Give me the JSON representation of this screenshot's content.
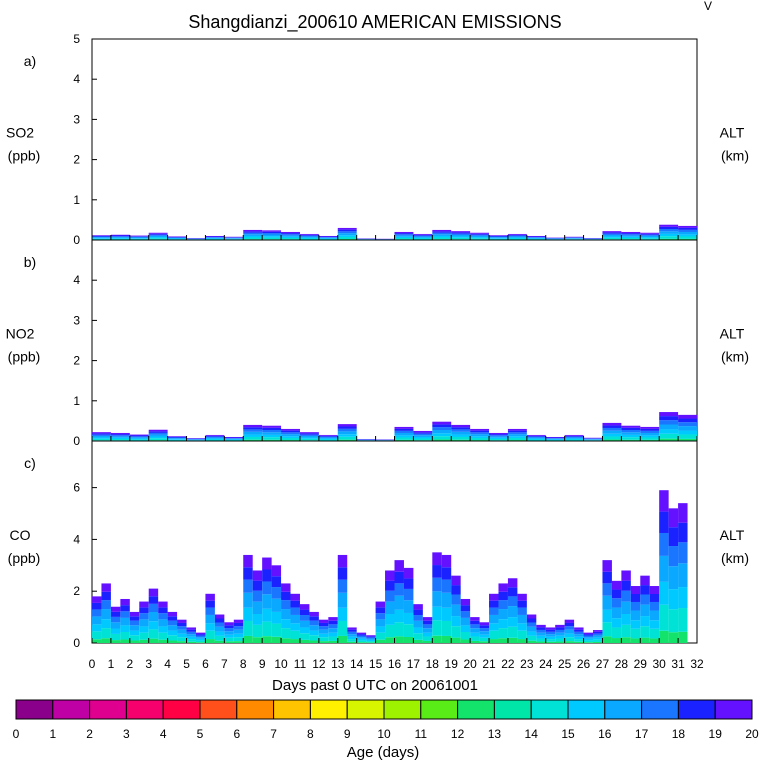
{
  "chart_data": {
    "type": "area",
    "title": "Shangdianzi_200610 AMERICAN EMISSIONS",
    "corner_mark": "V",
    "xlabel": "Days past 0 UTC on 20061001",
    "x_ticks": [
      "0",
      "1",
      "2",
      "3",
      "4",
      "5",
      "6",
      "7",
      "8",
      "9",
      "10",
      "11",
      "12",
      "13",
      "14",
      "15",
      "16",
      "17",
      "18",
      "19",
      "20",
      "21",
      "22",
      "23",
      "24",
      "25",
      "26",
      "27",
      "28",
      "29",
      "30",
      "31",
      "32"
    ],
    "xlim": [
      0,
      32
    ],
    "panels": [
      {
        "letter": "a)",
        "ylabel": "SO2",
        "yunit": "(ppb)",
        "rlabel": "ALT",
        "runit": "(km)",
        "ylim": [
          0,
          5
        ],
        "yticks": [
          "0",
          "1",
          "2",
          "3",
          "4",
          "5"
        ],
        "series": [
          {
            "day": 0.0,
            "total": 0.12
          },
          {
            "day": 1.0,
            "total": 0.13
          },
          {
            "day": 2.0,
            "total": 0.11
          },
          {
            "day": 3.0,
            "total": 0.18
          },
          {
            "day": 4.0,
            "total": 0.09
          },
          {
            "day": 5.0,
            "total": 0.05
          },
          {
            "day": 6.0,
            "total": 0.1
          },
          {
            "day": 7.0,
            "total": 0.08
          },
          {
            "day": 8.0,
            "total": 0.25
          },
          {
            "day": 9.0,
            "total": 0.24
          },
          {
            "day": 10.0,
            "total": 0.2
          },
          {
            "day": 11.0,
            "total": 0.15
          },
          {
            "day": 12.0,
            "total": 0.1
          },
          {
            "day": 13.0,
            "total": 0.3
          },
          {
            "day": 14.0,
            "total": 0.04
          },
          {
            "day": 15.0,
            "total": 0.03
          },
          {
            "day": 16.0,
            "total": 0.2
          },
          {
            "day": 17.0,
            "total": 0.15
          },
          {
            "day": 18.0,
            "total": 0.25
          },
          {
            "day": 19.0,
            "total": 0.22
          },
          {
            "day": 20.0,
            "total": 0.18
          },
          {
            "day": 21.0,
            "total": 0.12
          },
          {
            "day": 22.0,
            "total": 0.15
          },
          {
            "day": 23.0,
            "total": 0.1
          },
          {
            "day": 24.0,
            "total": 0.06
          },
          {
            "day": 25.0,
            "total": 0.08
          },
          {
            "day": 26.0,
            "total": 0.05
          },
          {
            "day": 27.0,
            "total": 0.22
          },
          {
            "day": 28.0,
            "total": 0.2
          },
          {
            "day": 29.0,
            "total": 0.18
          },
          {
            "day": 30.0,
            "total": 0.38
          },
          {
            "day": 31.0,
            "total": 0.35
          }
        ]
      },
      {
        "letter": "b)",
        "ylabel": "NO2",
        "yunit": "(ppb)",
        "rlabel": "ALT",
        "runit": "(km)",
        "ylim": [
          0,
          5
        ],
        "yticks": [
          "0",
          "1",
          "2",
          "3",
          "4"
        ],
        "series": [
          {
            "day": 0.0,
            "total": 0.22
          },
          {
            "day": 1.0,
            "total": 0.2
          },
          {
            "day": 2.0,
            "total": 0.16
          },
          {
            "day": 3.0,
            "total": 0.28
          },
          {
            "day": 4.0,
            "total": 0.12
          },
          {
            "day": 5.0,
            "total": 0.07
          },
          {
            "day": 6.0,
            "total": 0.15
          },
          {
            "day": 7.0,
            "total": 0.1
          },
          {
            "day": 8.0,
            "total": 0.4
          },
          {
            "day": 9.0,
            "total": 0.38
          },
          {
            "day": 10.0,
            "total": 0.3
          },
          {
            "day": 11.0,
            "total": 0.22
          },
          {
            "day": 12.0,
            "total": 0.15
          },
          {
            "day": 13.0,
            "total": 0.42
          },
          {
            "day": 14.0,
            "total": 0.05
          },
          {
            "day": 15.0,
            "total": 0.04
          },
          {
            "day": 16.0,
            "total": 0.35
          },
          {
            "day": 17.0,
            "total": 0.25
          },
          {
            "day": 18.0,
            "total": 0.48
          },
          {
            "day": 19.0,
            "total": 0.4
          },
          {
            "day": 20.0,
            "total": 0.3
          },
          {
            "day": 21.0,
            "total": 0.2
          },
          {
            "day": 22.0,
            "total": 0.3
          },
          {
            "day": 23.0,
            "total": 0.15
          },
          {
            "day": 24.0,
            "total": 0.1
          },
          {
            "day": 25.0,
            "total": 0.15
          },
          {
            "day": 26.0,
            "total": 0.08
          },
          {
            "day": 27.0,
            "total": 0.45
          },
          {
            "day": 28.0,
            "total": 0.38
          },
          {
            "day": 29.0,
            "total": 0.35
          },
          {
            "day": 30.0,
            "total": 0.72
          },
          {
            "day": 31.0,
            "total": 0.65
          }
        ]
      },
      {
        "letter": "c)",
        "ylabel": "CO",
        "yunit": "(ppb)",
        "rlabel": "ALT",
        "runit": "(km)",
        "ylim": [
          0,
          7.8
        ],
        "yticks": [
          "0",
          "2",
          "4",
          "6"
        ],
        "series": [
          {
            "day": 0.0,
            "total": 1.8
          },
          {
            "day": 0.5,
            "total": 2.3
          },
          {
            "day": 1.0,
            "total": 1.4
          },
          {
            "day": 1.5,
            "total": 1.7
          },
          {
            "day": 2.0,
            "total": 1.2
          },
          {
            "day": 2.5,
            "total": 1.6
          },
          {
            "day": 3.0,
            "total": 2.1
          },
          {
            "day": 3.5,
            "total": 1.6
          },
          {
            "day": 4.0,
            "total": 1.2
          },
          {
            "day": 4.5,
            "total": 0.9
          },
          {
            "day": 5.0,
            "total": 0.6
          },
          {
            "day": 5.5,
            "total": 0.4
          },
          {
            "day": 6.0,
            "total": 1.9
          },
          {
            "day": 6.5,
            "total": 1.1
          },
          {
            "day": 7.0,
            "total": 0.8
          },
          {
            "day": 7.5,
            "total": 0.9
          },
          {
            "day": 8.0,
            "total": 3.4
          },
          {
            "day": 8.5,
            "total": 2.8
          },
          {
            "day": 9.0,
            "total": 3.3
          },
          {
            "day": 9.5,
            "total": 3.0
          },
          {
            "day": 10.0,
            "total": 2.3
          },
          {
            "day": 10.5,
            "total": 1.9
          },
          {
            "day": 11.0,
            "total": 1.5
          },
          {
            "day": 11.5,
            "total": 1.2
          },
          {
            "day": 12.0,
            "total": 0.9
          },
          {
            "day": 12.5,
            "total": 1.0
          },
          {
            "day": 13.0,
            "total": 3.4
          },
          {
            "day": 13.5,
            "total": 0.6
          },
          {
            "day": 14.0,
            "total": 0.4
          },
          {
            "day": 14.5,
            "total": 0.3
          },
          {
            "day": 15.0,
            "total": 1.6
          },
          {
            "day": 15.5,
            "total": 2.8
          },
          {
            "day": 16.0,
            "total": 3.2
          },
          {
            "day": 16.5,
            "total": 2.9
          },
          {
            "day": 17.0,
            "total": 1.5
          },
          {
            "day": 17.5,
            "total": 1.0
          },
          {
            "day": 18.0,
            "total": 3.5
          },
          {
            "day": 18.5,
            "total": 3.4
          },
          {
            "day": 19.0,
            "total": 2.6
          },
          {
            "day": 19.5,
            "total": 1.7
          },
          {
            "day": 20.0,
            "total": 1.0
          },
          {
            "day": 20.5,
            "total": 0.8
          },
          {
            "day": 21.0,
            "total": 1.9
          },
          {
            "day": 21.5,
            "total": 2.3
          },
          {
            "day": 22.0,
            "total": 2.5
          },
          {
            "day": 22.5,
            "total": 1.9
          },
          {
            "day": 23.0,
            "total": 1.1
          },
          {
            "day": 23.5,
            "total": 0.7
          },
          {
            "day": 24.0,
            "total": 0.6
          },
          {
            "day": 24.5,
            "total": 0.7
          },
          {
            "day": 25.0,
            "total": 0.9
          },
          {
            "day": 25.5,
            "total": 0.6
          },
          {
            "day": 26.0,
            "total": 0.4
          },
          {
            "day": 26.5,
            "total": 0.5
          },
          {
            "day": 27.0,
            "total": 3.2
          },
          {
            "day": 27.5,
            "total": 2.4
          },
          {
            "day": 28.0,
            "total": 2.8
          },
          {
            "day": 28.5,
            "total": 2.2
          },
          {
            "day": 29.0,
            "total": 2.6
          },
          {
            "day": 29.5,
            "total": 2.2
          },
          {
            "day": 30.0,
            "total": 5.9
          },
          {
            "day": 30.5,
            "total": 5.2
          },
          {
            "day": 31.0,
            "total": 5.4
          }
        ]
      }
    ],
    "colorbar": {
      "title": "Age (days)",
      "labels": [
        "0",
        "1",
        "2",
        "3",
        "4",
        "5",
        "6",
        "7",
        "8",
        "9",
        "10",
        "11",
        "12",
        "13",
        "14",
        "15",
        "16",
        "17",
        "18",
        "19",
        "20"
      ],
      "colors": [
        "#8b008b",
        "#bf00a5",
        "#e0008f",
        "#f5006d",
        "#ff0044",
        "#ff4f1a",
        "#ff8a00",
        "#ffc400",
        "#fff000",
        "#d8f500",
        "#9ef200",
        "#59ec17",
        "#14e36b",
        "#00e5a8",
        "#00e2d6",
        "#00c9ff",
        "#0aa8ff",
        "#1a76ff",
        "#1a22ff",
        "#6411ff"
      ]
    },
    "grid": false,
    "legend": "bottom"
  }
}
